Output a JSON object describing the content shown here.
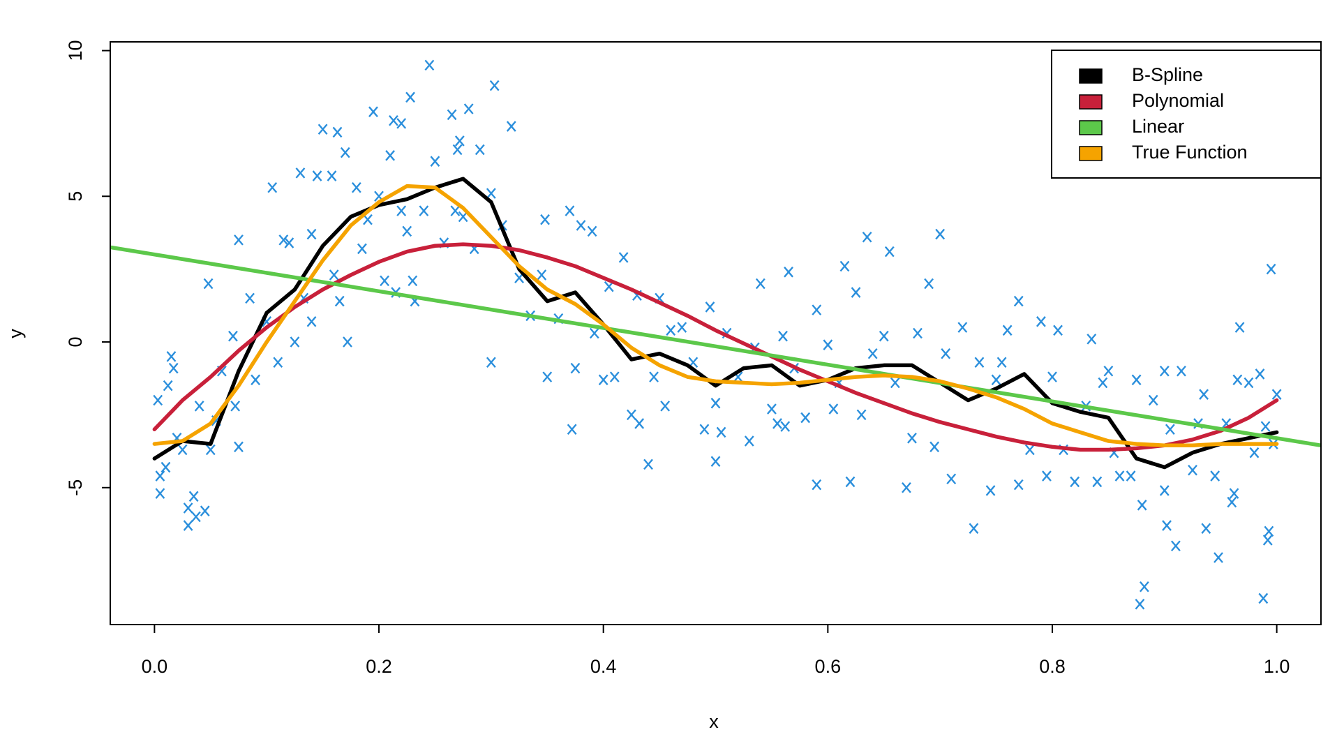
{
  "chart_data": {
    "type": "scatter",
    "x_label": "x",
    "y_label": "y",
    "xlim": [
      -0.0394,
      1.0394
    ],
    "ylim": [
      -9.7,
      10.3
    ],
    "xticks": [
      {
        "value": 0,
        "label": "0.0"
      },
      0.2,
      0.4,
      0.6,
      0.8,
      {
        "value": 1,
        "label": "1.0"
      }
    ],
    "yticks": [
      -5,
      0,
      5,
      10
    ],
    "legend": "top right",
    "points": {
      "color": "#2b8fdc",
      "x": [
        0.003,
        0.005,
        0.005,
        0.01,
        0.012,
        0.015,
        0.017,
        0.02,
        0.025,
        0.03,
        0.03,
        0.035,
        0.037,
        0.04,
        0.045,
        0.048,
        0.05,
        0.055,
        0.06,
        0.07,
        0.072,
        0.075,
        0.075,
        0.085,
        0.09,
        0.1,
        0.105,
        0.11,
        0.115,
        0.12,
        0.125,
        0.13,
        0.133,
        0.14,
        0.14,
        0.145,
        0.15,
        0.158,
        0.16,
        0.163,
        0.165,
        0.17,
        0.172,
        0.18,
        0.185,
        0.19,
        0.195,
        0.2,
        0.205,
        0.21,
        0.213,
        0.215,
        0.22,
        0.22,
        0.225,
        0.228,
        0.23,
        0.232,
        0.24,
        0.245,
        0.25,
        0.258,
        0.265,
        0.268,
        0.27,
        0.272,
        0.275,
        0.28,
        0.285,
        0.29,
        0.3,
        0.3,
        0.303,
        0.31,
        0.318,
        0.325,
        0.335,
        0.345,
        0.348,
        0.35,
        0.36,
        0.37,
        0.372,
        0.375,
        0.38,
        0.39,
        0.392,
        0.4,
        0.405,
        0.41,
        0.418,
        0.425,
        0.43,
        0.432,
        0.44,
        0.445,
        0.45,
        0.455,
        0.46,
        0.47,
        0.48,
        0.49,
        0.495,
        0.5,
        0.5,
        0.505,
        0.51,
        0.52,
        0.53,
        0.535,
        0.54,
        0.55,
        0.555,
        0.56,
        0.562,
        0.565,
        0.57,
        0.58,
        0.59,
        0.59,
        0.6,
        0.605,
        0.61,
        0.615,
        0.62,
        0.625,
        0.63,
        0.635,
        0.64,
        0.65,
        0.655,
        0.66,
        0.67,
        0.675,
        0.68,
        0.69,
        0.695,
        0.7,
        0.705,
        0.71,
        0.72,
        0.73,
        0.735,
        0.745,
        0.75,
        0.755,
        0.76,
        0.77,
        0.77,
        0.78,
        0.79,
        0.795,
        0.8,
        0.805,
        0.81,
        0.82,
        0.83,
        0.835,
        0.84,
        0.845,
        0.85,
        0.855,
        0.86,
        0.87,
        0.875,
        0.878,
        0.88,
        0.882,
        0.89,
        0.9,
        0.9,
        0.902,
        0.905,
        0.91,
        0.915,
        0.925,
        0.93,
        0.935,
        0.937,
        0.945,
        0.948,
        0.955,
        0.96,
        0.962,
        0.965,
        0.967,
        0.975,
        0.98,
        0.985,
        0.988,
        0.99,
        0.992,
        0.993,
        0.995,
        0.997,
        1.0
      ],
      "y": [
        -2.0,
        -4.6,
        -5.2,
        -4.3,
        -1.5,
        -0.5,
        -0.9,
        -3.3,
        -3.7,
        -5.7,
        -6.3,
        -5.3,
        -6.0,
        -2.2,
        -5.8,
        2.0,
        -3.7,
        -2.7,
        -1.0,
        0.2,
        -2.2,
        3.5,
        -3.6,
        1.5,
        -1.3,
        0.7,
        5.3,
        -0.7,
        3.5,
        3.4,
        0.0,
        5.8,
        1.5,
        3.7,
        0.7,
        5.7,
        7.3,
        5.7,
        2.3,
        7.2,
        1.4,
        6.5,
        0.0,
        5.3,
        3.2,
        4.2,
        7.9,
        5.0,
        2.1,
        6.4,
        7.6,
        1.7,
        7.5,
        4.5,
        3.8,
        8.4,
        2.1,
        1.4,
        4.5,
        9.5,
        6.2,
        3.4,
        7.8,
        4.5,
        6.6,
        6.9,
        4.3,
        8.0,
        3.2,
        6.6,
        5.1,
        -0.7,
        8.8,
        4.0,
        7.4,
        2.2,
        0.9,
        2.3,
        4.2,
        -1.2,
        0.8,
        4.5,
        -3.0,
        -0.9,
        4.0,
        3.8,
        0.3,
        -1.3,
        1.9,
        -1.2,
        2.9,
        -2.5,
        1.6,
        -2.8,
        -4.2,
        -1.2,
        1.5,
        -2.2,
        0.4,
        0.5,
        -0.7,
        -3.0,
        1.2,
        -4.1,
        -2.1,
        -3.1,
        0.3,
        -1.2,
        -3.4,
        -0.2,
        2.0,
        -2.3,
        -2.8,
        0.2,
        -2.9,
        2.4,
        -0.9,
        -2.6,
        1.1,
        -4.9,
        -0.1,
        -2.3,
        -1.4,
        2.6,
        -4.8,
        1.7,
        -2.5,
        3.6,
        -0.4,
        0.2,
        3.1,
        -1.4,
        -5.0,
        -3.3,
        0.3,
        2.0,
        -3.6,
        3.7,
        -0.4,
        -4.7,
        0.5,
        -6.4,
        -0.7,
        -5.1,
        -1.3,
        -0.7,
        0.4,
        1.4,
        -4.9,
        -3.7,
        0.7,
        -4.6,
        -1.2,
        0.4,
        -3.7,
        -4.8,
        -2.2,
        0.1,
        -4.8,
        -1.4,
        -1.0,
        -3.8,
        -4.6,
        -4.6,
        -1.3,
        -9.0,
        -5.6,
        -8.4,
        -2.0,
        -1.0,
        -5.1,
        -6.3,
        -3.0,
        -7.0,
        -1.0,
        -4.4,
        -2.8,
        -1.8,
        -6.4,
        -4.6,
        -7.4,
        -2.8,
        -5.5,
        -5.2,
        -1.3,
        0.5,
        -1.4,
        -3.8,
        -1.1,
        -8.8,
        -2.9,
        -6.8,
        -6.5,
        2.5,
        -3.5,
        -1.8
      ]
    },
    "series": [
      {
        "name": "B-Spline",
        "color": "#000000",
        "x": [
          0,
          0.025,
          0.05,
          0.075,
          0.1,
          0.125,
          0.15,
          0.175,
          0.2,
          0.225,
          0.25,
          0.275,
          0.3,
          0.325,
          0.35,
          0.375,
          0.4,
          0.425,
          0.45,
          0.475,
          0.5,
          0.525,
          0.55,
          0.575,
          0.6,
          0.625,
          0.65,
          0.675,
          0.7,
          0.725,
          0.75,
          0.775,
          0.8,
          0.825,
          0.85,
          0.875,
          0.9,
          0.925,
          0.95,
          0.975,
          1
        ],
        "values": [
          -4.0,
          -3.4,
          -3.5,
          -1.0,
          1.0,
          1.8,
          3.3,
          4.3,
          4.7,
          4.9,
          5.3,
          5.6,
          4.8,
          2.5,
          1.4,
          1.7,
          0.6,
          -0.6,
          -0.4,
          -0.8,
          -1.5,
          -0.9,
          -0.8,
          -1.5,
          -1.3,
          -0.9,
          -0.8,
          -0.8,
          -1.4,
          -2.0,
          -1.6,
          -1.1,
          -2.1,
          -2.4,
          -2.6,
          -4.0,
          -4.3,
          -3.8,
          -3.5,
          -3.3,
          -3.1
        ]
      },
      {
        "name": "Polynomial",
        "color": "#c8203a",
        "x": [
          0,
          0.025,
          0.05,
          0.075,
          0.1,
          0.125,
          0.15,
          0.175,
          0.2,
          0.225,
          0.25,
          0.275,
          0.3,
          0.325,
          0.35,
          0.375,
          0.4,
          0.425,
          0.45,
          0.475,
          0.5,
          0.525,
          0.55,
          0.575,
          0.6,
          0.625,
          0.65,
          0.675,
          0.7,
          0.725,
          0.75,
          0.775,
          0.8,
          0.825,
          0.85,
          0.875,
          0.9,
          0.925,
          0.95,
          0.975,
          1
        ],
        "values": [
          -3.0,
          -2.0,
          -1.2,
          -0.3,
          0.5,
          1.2,
          1.8,
          2.3,
          2.75,
          3.1,
          3.3,
          3.35,
          3.3,
          3.15,
          2.9,
          2.6,
          2.2,
          1.8,
          1.35,
          0.9,
          0.4,
          -0.05,
          -0.5,
          -0.95,
          -1.35,
          -1.75,
          -2.1,
          -2.45,
          -2.75,
          -3.0,
          -3.25,
          -3.45,
          -3.6,
          -3.7,
          -3.7,
          -3.65,
          -3.55,
          -3.35,
          -3.05,
          -2.6,
          -2.0
        ]
      },
      {
        "name": "Linear",
        "color": "#5cc84a",
        "x": [
          -0.0394,
          1.0394
        ],
        "values": [
          3.25,
          -3.55
        ]
      },
      {
        "name": "True Function",
        "color": "#f5a300",
        "x": [
          0,
          0.025,
          0.05,
          0.075,
          0.1,
          0.125,
          0.15,
          0.175,
          0.2,
          0.225,
          0.25,
          0.275,
          0.3,
          0.325,
          0.35,
          0.375,
          0.4,
          0.425,
          0.45,
          0.475,
          0.5,
          0.525,
          0.55,
          0.575,
          0.6,
          0.625,
          0.65,
          0.675,
          0.7,
          0.725,
          0.75,
          0.775,
          0.8,
          0.825,
          0.85,
          0.875,
          0.9,
          0.925,
          0.95,
          0.975,
          1
        ],
        "values": [
          -3.5,
          -3.4,
          -2.8,
          -1.5,
          0.0,
          1.4,
          2.8,
          4.0,
          4.8,
          5.35,
          5.3,
          4.6,
          3.6,
          2.6,
          1.8,
          1.3,
          0.6,
          -0.2,
          -0.8,
          -1.2,
          -1.35,
          -1.4,
          -1.45,
          -1.4,
          -1.3,
          -1.2,
          -1.15,
          -1.2,
          -1.35,
          -1.6,
          -1.9,
          -2.3,
          -2.8,
          -3.1,
          -3.4,
          -3.5,
          -3.55,
          -3.55,
          -3.5,
          -3.5,
          -3.5
        ]
      }
    ]
  }
}
